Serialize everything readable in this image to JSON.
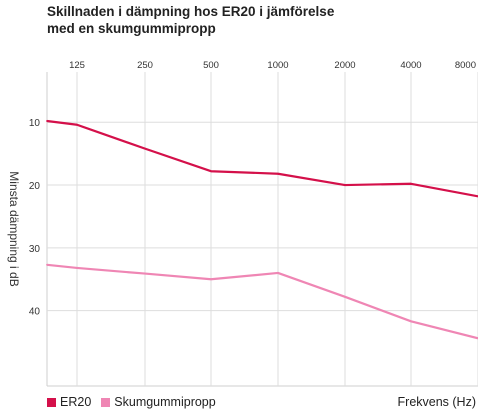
{
  "chart_data": {
    "type": "line",
    "title_lines": [
      "Skillnaden i dämpning hos  ER20 i jämförelse",
      "med en skumgummipropp"
    ],
    "xlabel": "Frekvens (Hz)",
    "ylabel": "Minsta dämpning i dB",
    "x_ticks": [
      "125",
      "250",
      "500",
      "1000",
      "2000",
      "4000",
      "8000"
    ],
    "y_ticks": [
      10,
      20,
      30,
      40
    ],
    "ylim": [
      2,
      52
    ],
    "y_inverted": true,
    "x_axis_position": "top",
    "grid": true,
    "legend_position": "bottom-left",
    "series": [
      {
        "name": "ER20",
        "color": "#d4104a",
        "x": [
          "100",
          "125",
          "250",
          "500",
          "1000",
          "2000",
          "4000",
          "8000"
        ],
        "values": [
          9.8,
          10.4,
          14.2,
          17.8,
          18.2,
          20.0,
          19.8,
          21.8
        ]
      },
      {
        "name": "Skumgummipropp",
        "color": "#ef86b4",
        "x": [
          "100",
          "125",
          "250",
          "500",
          "1000",
          "2000",
          "4000",
          "8000"
        ],
        "values": [
          32.7,
          33.2,
          34.1,
          35.0,
          34.0,
          37.8,
          41.7,
          44.4
        ]
      }
    ]
  }
}
